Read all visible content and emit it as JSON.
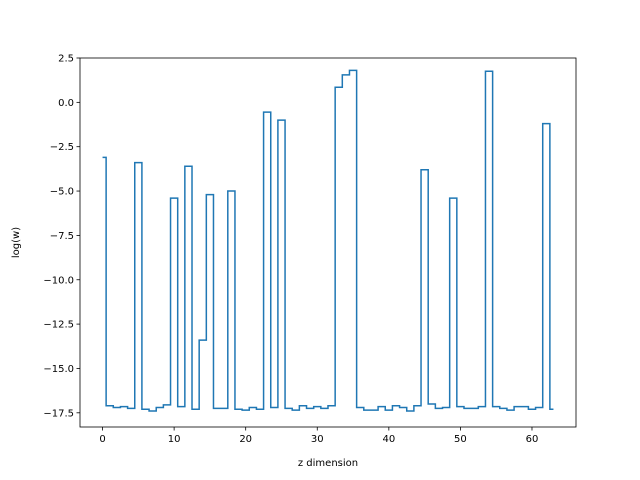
{
  "chart_data": {
    "type": "line",
    "drawstyle": "steps-mid",
    "title": "",
    "xlabel": "z dimension",
    "ylabel": "log(w)",
    "xlim": [
      -3.15,
      66.15
    ],
    "ylim": [
      -18.3,
      2.5
    ],
    "xticks": [
      0,
      10,
      20,
      30,
      40,
      50,
      60
    ],
    "yticks": [
      2.5,
      0.0,
      -2.5,
      -5.0,
      -7.5,
      -10.0,
      -12.5,
      -15.0,
      -17.5
    ],
    "ytick_labels": [
      "2.5",
      "0.0",
      "−2.5",
      "−5.0",
      "−7.5",
      "−10.0",
      "−12.5",
      "−15.0",
      "−17.5"
    ],
    "grid": false,
    "line_color": "#1f77b4",
    "series": [
      {
        "x": [
          0,
          1,
          2,
          3,
          4,
          5,
          6,
          7,
          8,
          9,
          10,
          11,
          12,
          13,
          14,
          15,
          16,
          17,
          18,
          19,
          20,
          21,
          22,
          23,
          24,
          25,
          26,
          27,
          28,
          29,
          30,
          31,
          32,
          33,
          34,
          35,
          36,
          37,
          38,
          39,
          40,
          41,
          42,
          43,
          44,
          45,
          46,
          47,
          48,
          49,
          50,
          51,
          52,
          53,
          54,
          55,
          56,
          57,
          58,
          59,
          60,
          61,
          62,
          63
        ],
        "values": [
          -3.1,
          -17.1,
          -17.2,
          -17.15,
          -17.25,
          -3.4,
          -17.3,
          -17.4,
          -17.2,
          -17.05,
          -5.4,
          -17.15,
          -3.6,
          -17.3,
          -13.4,
          -5.2,
          -17.25,
          -17.25,
          -5.0,
          -17.3,
          -17.35,
          -17.2,
          -17.3,
          -0.55,
          -17.2,
          -1.0,
          -17.25,
          -17.35,
          -17.1,
          -17.25,
          -17.15,
          -17.25,
          -17.1,
          0.85,
          1.55,
          1.8,
          -17.2,
          -17.35,
          -17.35,
          -17.15,
          -17.35,
          -17.1,
          -17.2,
          -17.4,
          -17.1,
          -3.8,
          -17.0,
          -17.25,
          -17.2,
          -5.4,
          -17.15,
          -17.25,
          -17.25,
          -17.15,
          1.75,
          -17.15,
          -17.25,
          -17.35,
          -17.15,
          -17.15,
          -17.3,
          -17.2,
          -1.2,
          -17.3
        ]
      }
    ]
  }
}
